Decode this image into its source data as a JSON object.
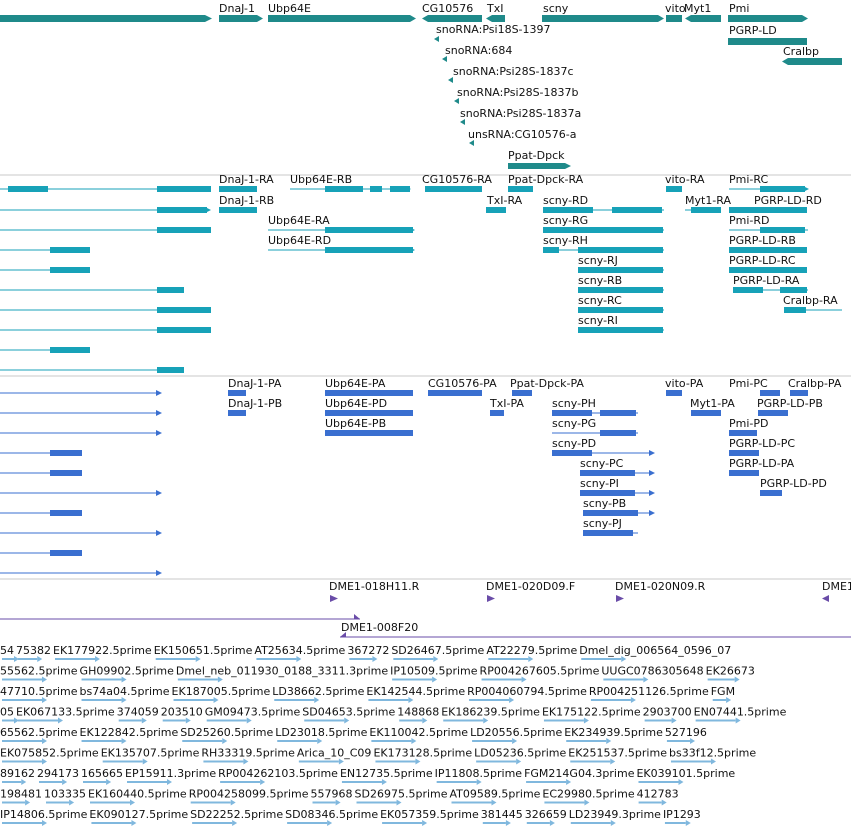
{
  "colors": {
    "gene": "#1f8a8a",
    "mrna": "#17a2b8",
    "cds": "#3a6fd0",
    "clone": "#6a4ca8",
    "est": "#80b8de"
  },
  "tracks": {
    "genes": {
      "labels": [
        "DnaJ-1",
        "Ubp64E",
        "CG10576",
        "TxI",
        "scny",
        "vito",
        "Myt1",
        "Pmi",
        "PGRP-LD",
        "Cralbp",
        "snoRNA:Psi18S-1397",
        "snoRNA:684",
        "snoRNA:Psi28S-1837c",
        "snoRNA:Psi28S-1837b",
        "snoRNA:Psi28S-1837a",
        "unsRNA:CG10576-a",
        "Ppat-Dpck"
      ]
    },
    "transcripts": {
      "labels": [
        "DnaJ-1-RA",
        "DnaJ-1-RB",
        "Ubp64E-RB",
        "Ubp64E-RA",
        "Ubp64E-RD",
        "CG10576-RA",
        "Ppat-Dpck-RA",
        "TxI-RA",
        "scny-RD",
        "scny-RG",
        "scny-RH",
        "scny-RJ",
        "scny-RB",
        "scny-RC",
        "scny-RI",
        "vito-RA",
        "Myt1-RA",
        "Pmi-RC",
        "PGRP-LD-RD",
        "Pmi-RD",
        "PGRP-LD-RB",
        "PGRP-LD-RC",
        "PGRP-LD-RA",
        "Cralbp-RA"
      ]
    },
    "proteins": {
      "labels": [
        "DnaJ-1-PA",
        "DnaJ-1-PB",
        "Ubp64E-PA",
        "Ubp64E-PD",
        "Ubp64E-PB",
        "CG10576-PA",
        "Ppat-Dpck-PA",
        "TxI-PA",
        "scny-PH",
        "scny-PG",
        "scny-PD",
        "scny-PC",
        "scny-PI",
        "scny-PB",
        "scny-PJ",
        "vito-PA",
        "Myt1-PA",
        "Pmi-PC",
        "Cralbp-PA",
        "PGRP-LD-PB",
        "Pmi-PD",
        "PGRP-LD-PC",
        "PGRP-LD-PA",
        "PGRP-LD-PD"
      ]
    },
    "clones": {
      "labels": [
        "DME1-018H11.R",
        "DME1-020D09.F",
        "DME1-020N09.R",
        "DME1",
        "DME1-008F20"
      ]
    },
    "ests": {
      "rows": [
        [
          "54",
          "75382",
          "EK177922.5prime",
          "EK150651.5prime",
          "AT25634.5prime",
          "367272",
          "SD26467.5prime",
          "AT22279.5prime",
          "Dmel_dig_006564_0596_07"
        ],
        [
          "55562.5prime",
          "GH09902.5prime",
          "Dmel_neb_011930_0188_3311.3prime",
          "IP10509.5prime",
          "RP004267605.5prime",
          "UUGC0786305648",
          "EK26673"
        ],
        [
          "47710.5prime",
          "bs74a04.5prime",
          "EK187005.5prime",
          "LD38662.5prime",
          "EK142544.5prime",
          "RP004060794.5prime",
          "RP004251126.5prime",
          "FGM"
        ],
        [
          "05",
          "EK067133.5prime",
          "374059",
          "203510",
          "GM09473.5prime",
          "SD04653.5prime",
          "148868",
          "EK186239.5prime",
          "EK175122.5prime",
          "2903700",
          "EN07441.5prime"
        ],
        [
          "65562.5prime",
          "EK122842.5prime",
          "SD25260.5prime",
          "LD23018.5prime",
          "EK110042.5prime",
          "LD20556.5prime",
          "EK234939.5prime",
          "527196"
        ],
        [
          "EK075852.5prime",
          "EK135707.5prime",
          "RH33319.5prime",
          "Arica_10_C09",
          "EK173128.5prime",
          "LD05236.5prime",
          "EK251537.5prime",
          "bs33f12.5prime"
        ],
        [
          "89162",
          "294173",
          "165665",
          "EP15911.3prime",
          "RP004262103.5prime",
          "EN12735.5prime",
          "IP11808.5prime",
          "FGM214G04.3prime",
          "EK039101.5prime"
        ],
        [
          "198481",
          "103335",
          "EK160440.5prime",
          "RP004258099.5prime",
          "557968",
          "SD26975.5prime",
          "AT09589.5prime",
          "EC29980.5prime",
          "412783"
        ],
        [
          "IP14806.5prime",
          "EK090127.5prime",
          "SD22252.5prime",
          "SD08346.5prime",
          "EK057359.5prime",
          "381445",
          "326659",
          "LD23949.3prime",
          "IP1293"
        ]
      ]
    }
  }
}
